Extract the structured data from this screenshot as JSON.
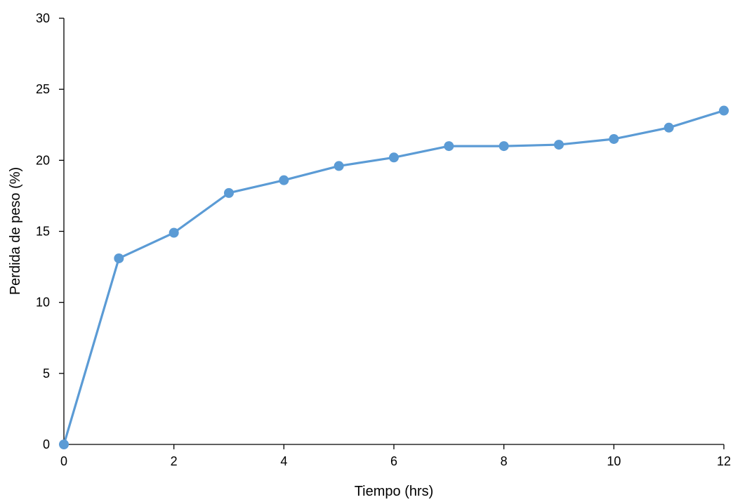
{
  "chart_data": {
    "type": "line",
    "title": "",
    "xlabel": "Tiempo (hrs)",
    "ylabel": "Perdida de peso (%)",
    "xlim": [
      0,
      12
    ],
    "ylim": [
      0,
      30
    ],
    "xticks": [
      "0",
      "2",
      "4",
      "6",
      "8",
      "10",
      "12"
    ],
    "yticks": [
      "0",
      "5",
      "10",
      "15",
      "20",
      "25",
      "30"
    ],
    "grid": false,
    "legend": "none",
    "series": [
      {
        "color": "#5b9bd5",
        "marker": "circle",
        "x": [
          0,
          1,
          2,
          3,
          4,
          5,
          6,
          7,
          8,
          9,
          10,
          11,
          12
        ],
        "y": [
          0,
          13.1,
          14.9,
          17.7,
          18.6,
          19.6,
          20.2,
          21.0,
          21.0,
          21.1,
          21.5,
          22.3,
          23.5
        ]
      }
    ]
  }
}
